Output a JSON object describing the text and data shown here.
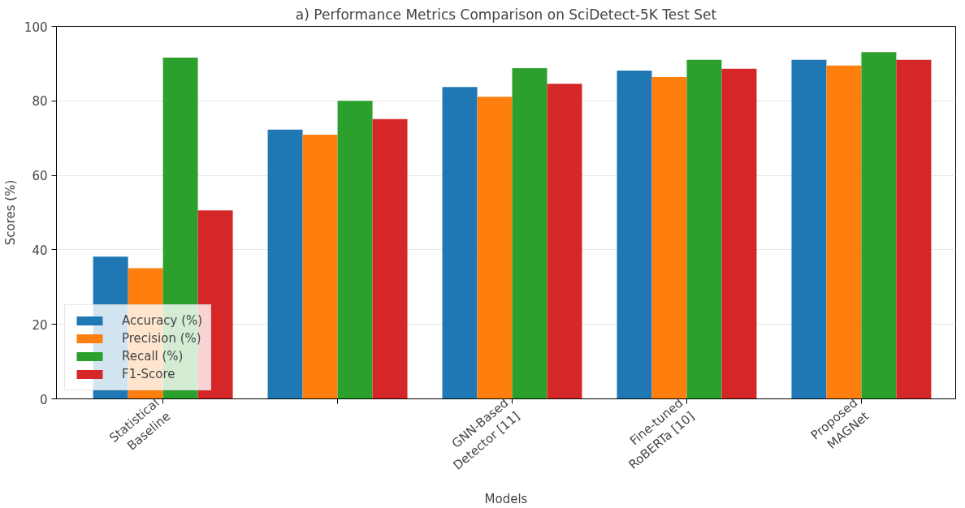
{
  "chart_data": {
    "type": "bar",
    "title": "a) Performance Metrics Comparison on SciDetect-5K Test Set",
    "xlabel": "Models",
    "ylabel": "Scores (%)",
    "categories": [
      "Statistical\nBaseline",
      null,
      "GNN-Based\nDetector [11]",
      "Fine-tuned\nRoBERTa [10]",
      "Proposed\nMAGNet"
    ],
    "series": [
      {
        "name": "Accuracy (%)",
        "color": "#1f77b4",
        "values": [
          38.2,
          72.3,
          83.7,
          88.1,
          91.0
        ]
      },
      {
        "name": "Precision (%)",
        "color": "#ff7f0e",
        "values": [
          35.1,
          70.9,
          81.1,
          86.4,
          89.5
        ]
      },
      {
        "name": "Recall (%)",
        "color": "#2ca02c",
        "values": [
          91.6,
          80.0,
          88.8,
          91.0,
          93.1
        ]
      },
      {
        "name": "F1-Score",
        "color": "#d62728",
        "values": [
          50.6,
          75.1,
          84.6,
          88.6,
          91.0
        ]
      }
    ],
    "ylim": [
      0,
      100
    ],
    "yticks": [
      0,
      20,
      40,
      60,
      80,
      100
    ],
    "grid": "y",
    "legend": "bottom left"
  }
}
